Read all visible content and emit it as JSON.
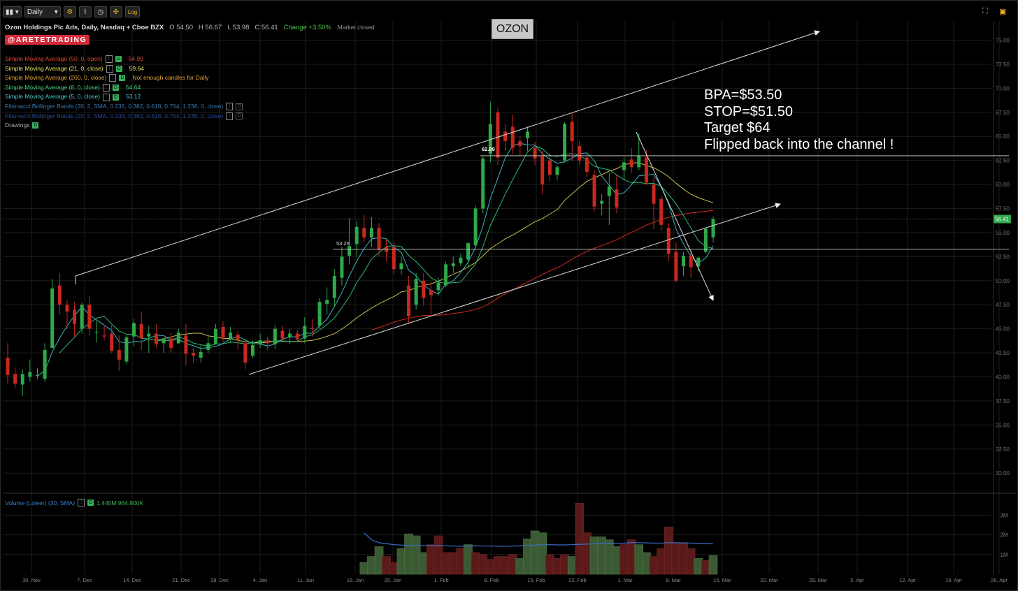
{
  "toolbar": {
    "timeframe": "Daily",
    "log_label": "Log"
  },
  "header": {
    "symbol_name": "Ozon Holdings Plc Ads, Daily, Nasdaq + Cboe BZX",
    "open": "O 54.50",
    "high": "H 56.67",
    "low": "L 53.98",
    "close": "C 56.41",
    "change": "Change +3.50%",
    "status": "Market closed"
  },
  "brand": "@ARETETRADING",
  "ticker_box": "OZON",
  "studies": [
    {
      "label": "Simple Moving Average (50, 0, open)",
      "value": "54.99",
      "color": "#e0462e"
    },
    {
      "label": "Simple Moving Average (21, 0, close)",
      "value": "59.64",
      "color": "#e8e060"
    },
    {
      "label": "Simple Moving Average (200, 0, close)",
      "value": "Not enough candles for Daily",
      "color": "#e0a030"
    },
    {
      "label": "Simple Moving Average (8, 0, close)",
      "value": "54.64",
      "color": "#3bd07a"
    },
    {
      "label": "Simple Moving Average (5, 0, close)",
      "value": "53.12",
      "color": "#4bc8d0"
    },
    {
      "label": "Fibonacci Bollinger Bands (20, 2, SMA, 0.236, 0.382, 0.618, 0.764, 1.236, 0, close)",
      "value": "",
      "color": "#3a7ab0"
    },
    {
      "label": "Fibonacci Bollinger Bands (20, 2, SMA, 0.236, 0.382, 0.618, 0.764, 1.236, 0, close)",
      "value": "",
      "color": "#2a4a90"
    },
    {
      "label": "Drawings",
      "value": "",
      "color": "#aaaaaa"
    }
  ],
  "notes": [
    "BPA=$53.50",
    "STOP=$51.50",
    "Target $64",
    "Flipped back into the channel !"
  ],
  "volume_study": {
    "label": "Volume (Lower) (30, SMA)",
    "value": "1.445M 964.800K"
  },
  "chart_data": {
    "type": "candlestick",
    "y_axis": {
      "ticks": [
        "75.00",
        "72.50",
        "70.00",
        "67.50",
        "65.00",
        "62.50",
        "60.00",
        "57.50",
        "55.00",
        "52.50",
        "50.00",
        "47.50",
        "45.00",
        "42.50",
        "40.00",
        "37.50",
        "35.00",
        "32.50",
        "30.00"
      ],
      "range": [
        28.2,
        77.0
      ]
    },
    "x_axis": {
      "ticks": [
        "30. Nov",
        "7. Dec",
        "14. Dec",
        "21. Dec",
        "28. Dec",
        "4. Jan",
        "11. Jan",
        "18. Jan",
        "25. Jan",
        "1. Feb",
        "8. Feb",
        "15. Feb",
        "22. Feb",
        "1. Mar",
        "8. Mar",
        "15. Mar",
        "22. Mar",
        "29. Mar",
        "5. Apr",
        "12. Apr",
        "19. Apr",
        "26. Apr"
      ]
    },
    "last_price": "56.41",
    "annotations": [
      "53.26",
      "62.99"
    ],
    "candles": [
      {
        "o": 42.0,
        "h": 43.5,
        "l": 39.3,
        "c": 40.2
      },
      {
        "o": 40.3,
        "h": 41.0,
        "l": 38.8,
        "c": 39.3
      },
      {
        "o": 39.2,
        "h": 40.8,
        "l": 38.0,
        "c": 40.3
      },
      {
        "o": 40.0,
        "h": 41.8,
        "l": 39.5,
        "c": 40.5
      },
      {
        "o": 40.1,
        "h": 40.9,
        "l": 39.8,
        "c": 40.2
      },
      {
        "o": 39.8,
        "h": 43.5,
        "l": 39.5,
        "c": 42.8
      },
      {
        "o": 43.0,
        "h": 50.2,
        "l": 43.0,
        "c": 49.2
      },
      {
        "o": 49.5,
        "h": 50.8,
        "l": 46.5,
        "c": 47.5
      },
      {
        "o": 47.5,
        "h": 48.0,
        "l": 45.0,
        "c": 46.8
      },
      {
        "o": 47.0,
        "h": 47.8,
        "l": 44.2,
        "c": 45.5
      },
      {
        "o": 45.0,
        "h": 47.7,
        "l": 44.5,
        "c": 47.5
      },
      {
        "o": 47.5,
        "h": 48.4,
        "l": 44.3,
        "c": 45.0
      },
      {
        "o": 44.7,
        "h": 45.8,
        "l": 43.6,
        "c": 44.7
      },
      {
        "o": 44.3,
        "h": 45.3,
        "l": 43.8,
        "c": 44.2
      },
      {
        "o": 44.5,
        "h": 45.4,
        "l": 42.5,
        "c": 42.7
      },
      {
        "o": 42.8,
        "h": 44.3,
        "l": 40.6,
        "c": 41.8
      },
      {
        "o": 41.6,
        "h": 44.3,
        "l": 41.3,
        "c": 44.1
      },
      {
        "o": 44.2,
        "h": 46.0,
        "l": 43.2,
        "c": 45.6
      },
      {
        "o": 45.5,
        "h": 46.8,
        "l": 42.8,
        "c": 44.0
      },
      {
        "o": 44.2,
        "h": 45.3,
        "l": 42.5,
        "c": 44.5
      },
      {
        "o": 44.5,
        "h": 45.5,
        "l": 43.0,
        "c": 43.4
      },
      {
        "o": 43.5,
        "h": 44.0,
        "l": 42.5,
        "c": 44.0
      },
      {
        "o": 44.0,
        "h": 44.6,
        "l": 42.5,
        "c": 43.0
      },
      {
        "o": 43.5,
        "h": 45.0,
        "l": 43.4,
        "c": 44.6
      },
      {
        "o": 44.3,
        "h": 45.5,
        "l": 41.2,
        "c": 42.4
      },
      {
        "o": 42.5,
        "h": 43.0,
        "l": 41.5,
        "c": 42.2
      },
      {
        "o": 42.0,
        "h": 43.4,
        "l": 41.5,
        "c": 42.6
      },
      {
        "o": 42.8,
        "h": 44.2,
        "l": 42.5,
        "c": 43.5
      },
      {
        "o": 43.4,
        "h": 45.5,
        "l": 43.4,
        "c": 45.0
      },
      {
        "o": 45.2,
        "h": 45.8,
        "l": 43.6,
        "c": 44.1
      },
      {
        "o": 44.0,
        "h": 45.2,
        "l": 43.5,
        "c": 44.6
      },
      {
        "o": 44.4,
        "h": 44.8,
        "l": 42.8,
        "c": 43.9
      },
      {
        "o": 43.5,
        "h": 44.0,
        "l": 40.8,
        "c": 41.5
      },
      {
        "o": 42.2,
        "h": 43.8,
        "l": 42.0,
        "c": 43.3
      },
      {
        "o": 43.4,
        "h": 44.5,
        "l": 43.0,
        "c": 43.8
      },
      {
        "o": 43.8,
        "h": 44.2,
        "l": 42.8,
        "c": 43.5
      },
      {
        "o": 43.4,
        "h": 45.4,
        "l": 42.9,
        "c": 45.0
      },
      {
        "o": 44.8,
        "h": 45.3,
        "l": 43.8,
        "c": 44.0
      },
      {
        "o": 44.1,
        "h": 45.0,
        "l": 43.4,
        "c": 44.5
      },
      {
        "o": 44.5,
        "h": 44.9,
        "l": 43.6,
        "c": 43.9
      },
      {
        "o": 44.0,
        "h": 46.2,
        "l": 43.5,
        "c": 45.3
      },
      {
        "o": 45.1,
        "h": 46.0,
        "l": 44.2,
        "c": 45.0
      },
      {
        "o": 45.3,
        "h": 48.2,
        "l": 45.0,
        "c": 47.8
      },
      {
        "o": 47.6,
        "h": 49.3,
        "l": 46.5,
        "c": 48.0
      },
      {
        "o": 48.2,
        "h": 51.2,
        "l": 47.3,
        "c": 50.5
      },
      {
        "o": 50.3,
        "h": 53.5,
        "l": 49.5,
        "c": 52.5
      },
      {
        "o": 52.6,
        "h": 56.5,
        "l": 51.7,
        "c": 53.6
      },
      {
        "o": 53.8,
        "h": 56.2,
        "l": 52.5,
        "c": 55.6
      },
      {
        "o": 55.5,
        "h": 56.8,
        "l": 54.0,
        "c": 54.5
      },
      {
        "o": 54.5,
        "h": 56.6,
        "l": 53.5,
        "c": 55.5
      },
      {
        "o": 55.5,
        "h": 56.0,
        "l": 52.5,
        "c": 53.2
      },
      {
        "o": 53.5,
        "h": 54.3,
        "l": 52.0,
        "c": 53.0
      },
      {
        "o": 53.5,
        "h": 54.0,
        "l": 50.7,
        "c": 51.2
      },
      {
        "o": 51.2,
        "h": 52.5,
        "l": 50.6,
        "c": 51.8
      },
      {
        "o": 49.5,
        "h": 50.5,
        "l": 45.5,
        "c": 46.3
      },
      {
        "o": 47.5,
        "h": 50.8,
        "l": 47.0,
        "c": 50.2
      },
      {
        "o": 50.0,
        "h": 50.8,
        "l": 47.4,
        "c": 48.2
      },
      {
        "o": 49.0,
        "h": 49.9,
        "l": 46.5,
        "c": 48.5
      },
      {
        "o": 49.0,
        "h": 50.3,
        "l": 48.5,
        "c": 49.8
      },
      {
        "o": 49.5,
        "h": 52.0,
        "l": 49.3,
        "c": 51.7
      },
      {
        "o": 51.5,
        "h": 52.5,
        "l": 50.8,
        "c": 51.8
      },
      {
        "o": 51.8,
        "h": 52.8,
        "l": 51.5,
        "c": 52.4
      },
      {
        "o": 52.2,
        "h": 54.0,
        "l": 51.5,
        "c": 53.9
      },
      {
        "o": 53.7,
        "h": 57.8,
        "l": 53.5,
        "c": 57.5
      },
      {
        "o": 57.5,
        "h": 62.99,
        "l": 57.0,
        "c": 62.7
      },
      {
        "o": 63.2,
        "h": 68.6,
        "l": 62.3,
        "c": 66.3
      },
      {
        "o": 67.5,
        "h": 68.0,
        "l": 62.0,
        "c": 62.8
      },
      {
        "o": 65.5,
        "h": 66.3,
        "l": 63.5,
        "c": 64.5
      },
      {
        "o": 66.0,
        "h": 67.3,
        "l": 63.2,
        "c": 63.8
      },
      {
        "o": 64.5,
        "h": 65.0,
        "l": 63.0,
        "c": 64.0
      },
      {
        "o": 64.8,
        "h": 66.0,
        "l": 63.5,
        "c": 65.5
      },
      {
        "o": 63.8,
        "h": 64.4,
        "l": 62.0,
        "c": 62.7
      },
      {
        "o": 63.0,
        "h": 63.5,
        "l": 59.0,
        "c": 60.0
      },
      {
        "o": 62.5,
        "h": 63.3,
        "l": 60.3,
        "c": 61.0
      },
      {
        "o": 61.0,
        "h": 62.0,
        "l": 60.5,
        "c": 61.8
      },
      {
        "o": 62.5,
        "h": 66.5,
        "l": 62.3,
        "c": 66.3
      },
      {
        "o": 66.5,
        "h": 67.4,
        "l": 62.5,
        "c": 64.5
      },
      {
        "o": 64.0,
        "h": 64.5,
        "l": 62.0,
        "c": 62.5
      },
      {
        "o": 62.8,
        "h": 63.2,
        "l": 60.8,
        "c": 61.3
      },
      {
        "o": 61.0,
        "h": 61.5,
        "l": 57.2,
        "c": 57.7
      },
      {
        "o": 58.0,
        "h": 59.0,
        "l": 56.8,
        "c": 58.3
      },
      {
        "o": 58.8,
        "h": 61.2,
        "l": 55.8,
        "c": 59.8
      },
      {
        "o": 59.5,
        "h": 61.0,
        "l": 57.0,
        "c": 57.6
      },
      {
        "o": 61.5,
        "h": 62.8,
        "l": 60.5,
        "c": 62.3
      },
      {
        "o": 62.6,
        "h": 63.8,
        "l": 61.2,
        "c": 61.8
      },
      {
        "o": 61.8,
        "h": 65.3,
        "l": 61.5,
        "c": 63.0
      },
      {
        "o": 62.8,
        "h": 63.6,
        "l": 60.0,
        "c": 60.2
      },
      {
        "o": 60.0,
        "h": 60.8,
        "l": 55.3,
        "c": 58.0
      },
      {
        "o": 58.5,
        "h": 58.8,
        "l": 55.2,
        "c": 55.8
      },
      {
        "o": 55.5,
        "h": 56.0,
        "l": 52.0,
        "c": 52.8
      },
      {
        "o": 53.0,
        "h": 54.0,
        "l": 49.8,
        "c": 50.0
      },
      {
        "o": 51.5,
        "h": 53.0,
        "l": 50.5,
        "c": 52.6
      },
      {
        "o": 52.6,
        "h": 53.0,
        "l": 50.3,
        "c": 51.4
      },
      {
        "o": 51.5,
        "h": 52.5,
        "l": 51.0,
        "c": 52.4
      },
      {
        "o": 53.0,
        "h": 55.5,
        "l": 52.8,
        "c": 55.4
      },
      {
        "o": 54.5,
        "h": 56.67,
        "l": 53.98,
        "c": 56.41
      }
    ],
    "volume": {
      "y_ticks": [
        "3M",
        "2M",
        "1M"
      ],
      "range": [
        0,
        3.9
      ],
      "values": [
        0.6,
        0.9,
        1.4,
        0.9,
        0.6,
        1.3,
        2.05,
        1.95,
        1.1,
        1.5,
        1.95,
        1.1,
        1.1,
        1.3,
        1.5,
        1.1,
        1.0,
        0.75,
        0.9,
        0.9,
        1.0,
        0.8,
        1.8,
        2.2,
        2.1,
        1.0,
        0.8,
        1.0,
        0.9,
        3.6,
        2.1,
        1.9,
        1.9,
        1.75,
        1.4,
        1.5,
        1.75,
        1.5,
        1.1,
        0.9,
        1.3,
        2.4,
        1.6,
        1.6,
        1.3,
        0.8,
        0.7,
        0.95
      ],
      "colors": [
        "g",
        "g",
        "g",
        "r",
        "r",
        "g",
        "g",
        "g",
        "g",
        "r",
        "r",
        "r",
        "r",
        "r",
        "g",
        "r",
        "r",
        "r",
        "r",
        "r",
        "r",
        "g",
        "g",
        "g",
        "g",
        "r",
        "r",
        "r",
        "g",
        "r",
        "r",
        "g",
        "g",
        "g",
        "g",
        "r",
        "r",
        "g",
        "g",
        "r",
        "r",
        "r",
        "r",
        "r",
        "r",
        "g",
        "r",
        "g"
      ]
    }
  }
}
